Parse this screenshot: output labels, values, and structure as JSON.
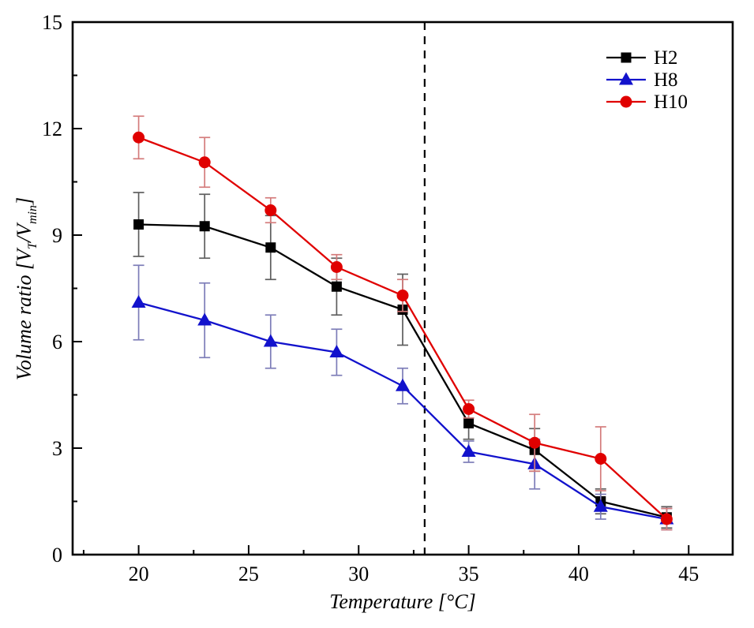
{
  "figure": {
    "background": "#ffffff",
    "axis_color": "#000000"
  },
  "chart_data": {
    "type": "line",
    "title": "",
    "xlabel": "Temperature [°C]",
    "ylabel": "Volume ratio [V_T/V_min]",
    "ylabel_parts": {
      "p1": "Volume ratio [V",
      "sub1": "T",
      "p2": "/V",
      "sub2": "min",
      "p3": "]"
    },
    "xlim": [
      17,
      47
    ],
    "ylim": [
      0,
      15
    ],
    "x_major_ticks": [
      20,
      25,
      30,
      35,
      40,
      45
    ],
    "x_minor_step": 2.5,
    "y_major_ticks": [
      0,
      3,
      6,
      9,
      12,
      15
    ],
    "y_minor_step": 1.5,
    "grid": false,
    "frame": true,
    "tick_direction": "in",
    "x": [
      20,
      23,
      26,
      29,
      32,
      35,
      38,
      41,
      44
    ],
    "series": [
      {
        "name": "H2",
        "marker": "square",
        "color": "#000000",
        "errorbar_color": "#5e5e5e",
        "values": [
          9.3,
          9.25,
          8.65,
          7.55,
          6.9,
          3.7,
          2.95,
          1.5,
          1.05
        ],
        "errors": [
          0.9,
          0.9,
          0.9,
          0.8,
          1.0,
          0.45,
          0.6,
          0.35,
          0.3
        ]
      },
      {
        "name": "H8",
        "marker": "triangle",
        "color": "#1212cc",
        "errorbar_color": "#7d7db8",
        "values": [
          7.1,
          6.6,
          6.0,
          5.7,
          4.75,
          2.9,
          2.55,
          1.35,
          1.0
        ],
        "errors": [
          1.05,
          1.05,
          0.75,
          0.65,
          0.5,
          0.3,
          0.7,
          0.35,
          0.3
        ]
      },
      {
        "name": "H10",
        "marker": "circle",
        "color": "#e00000",
        "errorbar_color": "#d47c7c",
        "values": [
          11.75,
          11.05,
          9.7,
          8.1,
          7.3,
          4.1,
          3.15,
          2.7,
          1.0
        ],
        "errors": [
          0.6,
          0.7,
          0.35,
          0.35,
          0.45,
          0.25,
          0.8,
          0.9,
          0.3
        ]
      }
    ],
    "reference_line": {
      "x": 33,
      "style": "dashed",
      "color": "#000000"
    },
    "legend": {
      "position": "top-right",
      "items": [
        "H2",
        "H8",
        "H10"
      ]
    }
  }
}
